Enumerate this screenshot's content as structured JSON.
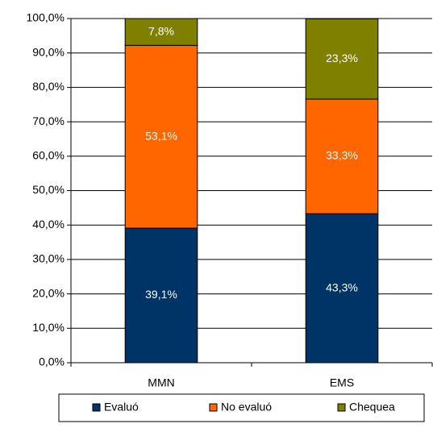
{
  "chart_data": {
    "type": "stacked_bar",
    "categories": [
      "MMN",
      "EMS"
    ],
    "series": [
      {
        "name": "Evaluó",
        "color": "#003366",
        "values": [
          39.1,
          43.3
        ],
        "value_labels": [
          "39,1%",
          "43,3%"
        ]
      },
      {
        "name": "No evaluó",
        "color": "#ff6600",
        "values": [
          53.1,
          33.3
        ],
        "value_labels": [
          "53,1%",
          "33,3%"
        ]
      },
      {
        "name": "Chequea",
        "color": "#808000",
        "values": [
          7.8,
          23.3
        ],
        "value_labels": [
          "7,8%",
          "23,3%"
        ]
      }
    ],
    "ylim": [
      0,
      100
    ],
    "yticks": [
      {
        "value": 0,
        "label": "0,0%"
      },
      {
        "value": 10,
        "label": "10,0%"
      },
      {
        "value": 20,
        "label": "20,0%"
      },
      {
        "value": 30,
        "label": "30,0%"
      },
      {
        "value": 40,
        "label": "40,0%"
      },
      {
        "value": 50,
        "label": "50,0%"
      },
      {
        "value": 60,
        "label": "60,0%"
      },
      {
        "value": 70,
        "label": "70,0%"
      },
      {
        "value": 80,
        "label": "80,0%"
      },
      {
        "value": 90,
        "label": "90,0%"
      },
      {
        "value": 100,
        "label": "100,0%"
      }
    ],
    "grid": true,
    "legend": "bottom"
  }
}
